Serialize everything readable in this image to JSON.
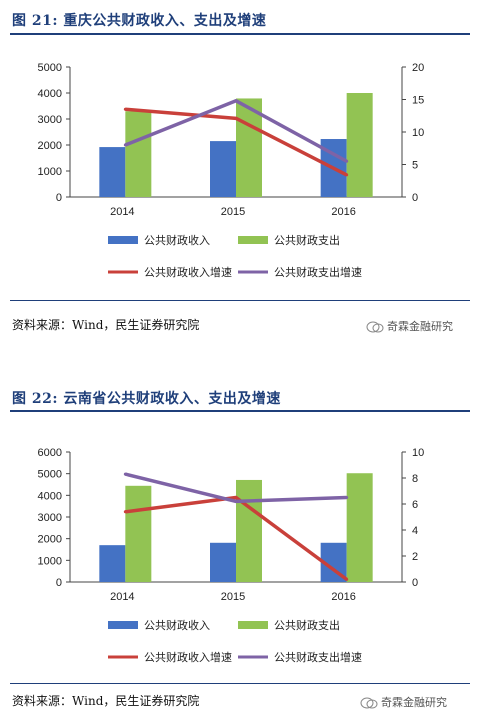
{
  "figures": [
    {
      "title": "图  21:  重庆公共财政收入、支出及增速",
      "source": "资料来源：Wind，民生证券研究院",
      "watermark": "奇霖金融研究"
    },
    {
      "title": "图  22:  云南省公共财政收入、支出及增速",
      "source": "资料来源：Wind，民生证券研究院",
      "watermark": "奇霖金融研究"
    }
  ],
  "colors": {
    "revenue": "#4472c4",
    "expenditure": "#92c353",
    "revenue_growth": "#c9403a",
    "expenditure_growth": "#7e63a6",
    "title": "#1f3f7a"
  },
  "chart_data": [
    {
      "type": "bar",
      "categories": [
        "2014",
        "2015",
        "2016"
      ],
      "series": [
        {
          "name": "公共财政收入",
          "type": "bar",
          "axis": "left",
          "values": [
            1920,
            2150,
            2230
          ]
        },
        {
          "name": "公共财政支出",
          "type": "bar",
          "axis": "left",
          "values": [
            3300,
            3790,
            4000
          ]
        },
        {
          "name": "公共财政收入增速",
          "type": "line",
          "axis": "right",
          "values": [
            13.5,
            12.1,
            3.4
          ]
        },
        {
          "name": "公共财政支出增速",
          "type": "line",
          "axis": "right",
          "values": [
            8.0,
            14.8,
            5.5
          ]
        }
      ],
      "ylim_left": [
        0,
        5000
      ],
      "yticks_left": [
        "0",
        "1000",
        "2000",
        "3000",
        "4000",
        "5000"
      ],
      "ylim_right": [
        0,
        20
      ],
      "yticks_right": [
        "0",
        "5",
        "10",
        "15",
        "20"
      ],
      "legend": "bottom",
      "grid": false
    },
    {
      "type": "bar",
      "categories": [
        "2014",
        "2015",
        "2016"
      ],
      "series": [
        {
          "name": "公共财政收入",
          "type": "bar",
          "axis": "left",
          "values": [
            1700,
            1810,
            1810
          ]
        },
        {
          "name": "公共财政支出",
          "type": "bar",
          "axis": "left",
          "values": [
            4440,
            4710,
            5020
          ]
        },
        {
          "name": "公共财政收入增速",
          "type": "line",
          "axis": "right",
          "values": [
            5.4,
            6.5,
            0.2
          ]
        },
        {
          "name": "公共财政支出增速",
          "type": "line",
          "axis": "right",
          "values": [
            8.3,
            6.2,
            6.5
          ]
        }
      ],
      "ylim_left": [
        0,
        6000
      ],
      "yticks_left": [
        "0",
        "1000",
        "2000",
        "3000",
        "4000",
        "5000",
        "6000"
      ],
      "ylim_right": [
        0,
        10
      ],
      "yticks_right": [
        "0",
        "2",
        "4",
        "6",
        "8",
        "10"
      ],
      "legend": "bottom",
      "grid": false
    }
  ]
}
